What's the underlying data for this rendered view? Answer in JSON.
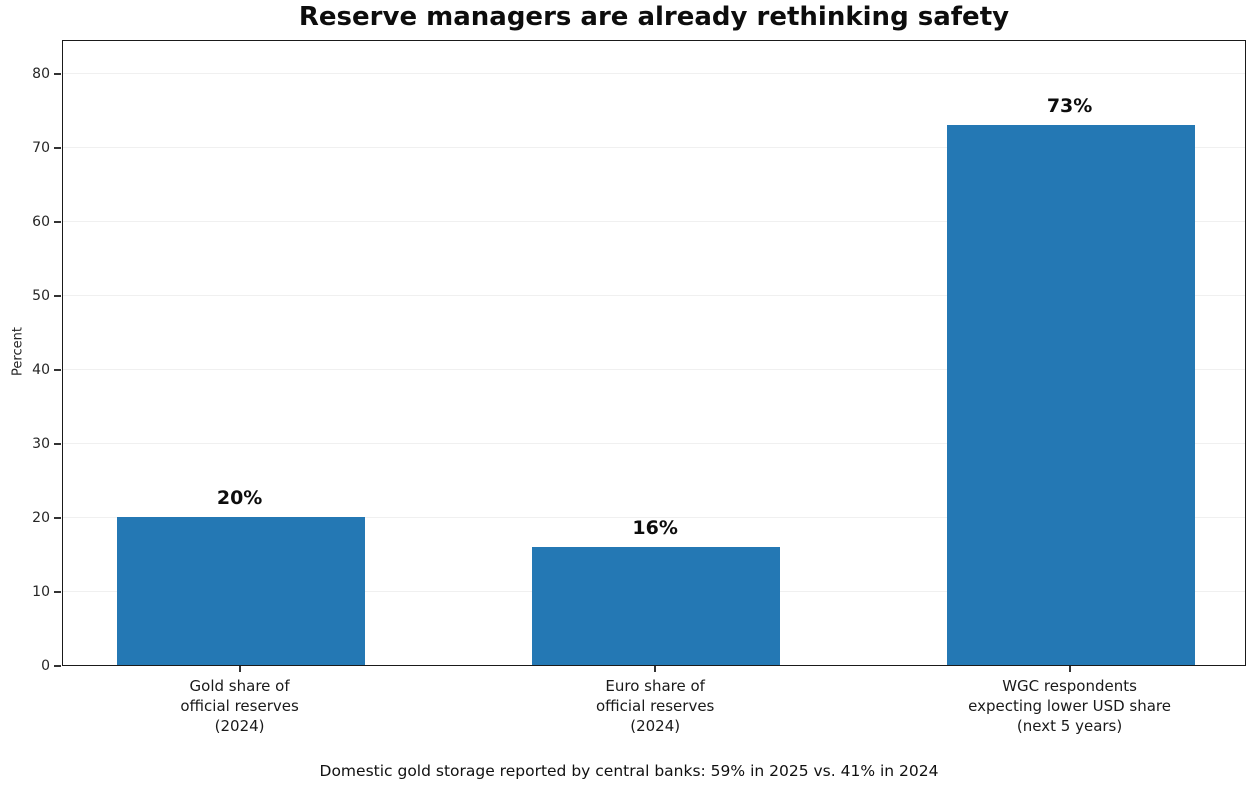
{
  "colors": {
    "bar": "#2478b4",
    "axis": "#1a1a1a",
    "grid": "#f0f0f0",
    "background": "#ffffff",
    "text": "#0d0d0d"
  },
  "chart_data": {
    "type": "bar",
    "title": "Reserve managers are already rethinking safety",
    "categories": [
      "Gold share of\nofficial reserves\n(2024)",
      "Euro share of\nofficial reserves\n(2024)",
      "WGC respondents\nexpecting lower USD share\n(next 5 years)"
    ],
    "values": [
      20,
      16,
      73
    ],
    "bar_labels": [
      "20%",
      "16%",
      "73%"
    ],
    "xlabel": "",
    "ylabel": "Percent",
    "ylim": [
      0,
      84.6
    ],
    "yticks": [
      0,
      10,
      20,
      30,
      40,
      50,
      60,
      70,
      80
    ],
    "grid": "horizontal-light",
    "legend": "none",
    "frame": "full-box",
    "annotation": "Domestic gold storage reported by central banks: 59% in 2025 vs. 41% in 2024"
  }
}
